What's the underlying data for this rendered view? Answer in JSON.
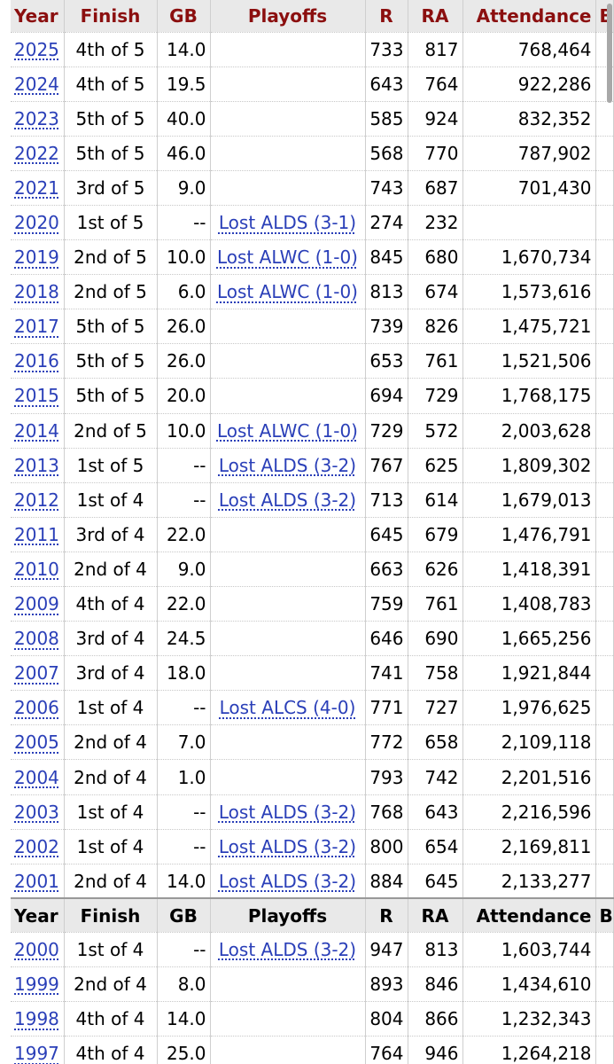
{
  "headers": [
    "Year",
    "Finish",
    "GB",
    "Playoffs",
    "R",
    "RA",
    "Attendance",
    "B"
  ],
  "rows_top": [
    {
      "year": "2025",
      "finish": "4th of 5",
      "gb": "14.0",
      "playoffs": "",
      "r": "733",
      "ra": "817",
      "attendance": "768,464"
    },
    {
      "year": "2024",
      "finish": "4th of 5",
      "gb": "19.5",
      "playoffs": "",
      "r": "643",
      "ra": "764",
      "attendance": "922,286"
    },
    {
      "year": "2023",
      "finish": "5th of 5",
      "gb": "40.0",
      "playoffs": "",
      "r": "585",
      "ra": "924",
      "attendance": "832,352"
    },
    {
      "year": "2022",
      "finish": "5th of 5",
      "gb": "46.0",
      "playoffs": "",
      "r": "568",
      "ra": "770",
      "attendance": "787,902"
    },
    {
      "year": "2021",
      "finish": "3rd of 5",
      "gb": "9.0",
      "playoffs": "",
      "r": "743",
      "ra": "687",
      "attendance": "701,430"
    },
    {
      "year": "2020",
      "finish": "1st of 5",
      "gb": "--",
      "playoffs": "Lost ALDS (3-1)",
      "r": "274",
      "ra": "232",
      "attendance": ""
    },
    {
      "year": "2019",
      "finish": "2nd of 5",
      "gb": "10.0",
      "playoffs": "Lost ALWC (1-0)",
      "r": "845",
      "ra": "680",
      "attendance": "1,670,734"
    },
    {
      "year": "2018",
      "finish": "2nd of 5",
      "gb": "6.0",
      "playoffs": "Lost ALWC (1-0)",
      "r": "813",
      "ra": "674",
      "attendance": "1,573,616"
    },
    {
      "year": "2017",
      "finish": "5th of 5",
      "gb": "26.0",
      "playoffs": "",
      "r": "739",
      "ra": "826",
      "attendance": "1,475,721"
    },
    {
      "year": "2016",
      "finish": "5th of 5",
      "gb": "26.0",
      "playoffs": "",
      "r": "653",
      "ra": "761",
      "attendance": "1,521,506"
    },
    {
      "year": "2015",
      "finish": "5th of 5",
      "gb": "20.0",
      "playoffs": "",
      "r": "694",
      "ra": "729",
      "attendance": "1,768,175"
    },
    {
      "year": "2014",
      "finish": "2nd of 5",
      "gb": "10.0",
      "playoffs": "Lost ALWC (1-0)",
      "r": "729",
      "ra": "572",
      "attendance": "2,003,628"
    },
    {
      "year": "2013",
      "finish": "1st of 5",
      "gb": "--",
      "playoffs": "Lost ALDS (3-2)",
      "r": "767",
      "ra": "625",
      "attendance": "1,809,302"
    },
    {
      "year": "2012",
      "finish": "1st of 4",
      "gb": "--",
      "playoffs": "Lost ALDS (3-2)",
      "r": "713",
      "ra": "614",
      "attendance": "1,679,013"
    },
    {
      "year": "2011",
      "finish": "3rd of 4",
      "gb": "22.0",
      "playoffs": "",
      "r": "645",
      "ra": "679",
      "attendance": "1,476,791"
    },
    {
      "year": "2010",
      "finish": "2nd of 4",
      "gb": "9.0",
      "playoffs": "",
      "r": "663",
      "ra": "626",
      "attendance": "1,418,391"
    },
    {
      "year": "2009",
      "finish": "4th of 4",
      "gb": "22.0",
      "playoffs": "",
      "r": "759",
      "ra": "761",
      "attendance": "1,408,783"
    },
    {
      "year": "2008",
      "finish": "3rd of 4",
      "gb": "24.5",
      "playoffs": "",
      "r": "646",
      "ra": "690",
      "attendance": "1,665,256"
    },
    {
      "year": "2007",
      "finish": "3rd of 4",
      "gb": "18.0",
      "playoffs": "",
      "r": "741",
      "ra": "758",
      "attendance": "1,921,844"
    },
    {
      "year": "2006",
      "finish": "1st of 4",
      "gb": "--",
      "playoffs": "Lost ALCS (4-0)",
      "r": "771",
      "ra": "727",
      "attendance": "1,976,625"
    },
    {
      "year": "2005",
      "finish": "2nd of 4",
      "gb": "7.0",
      "playoffs": "",
      "r": "772",
      "ra": "658",
      "attendance": "2,109,118"
    },
    {
      "year": "2004",
      "finish": "2nd of 4",
      "gb": "1.0",
      "playoffs": "",
      "r": "793",
      "ra": "742",
      "attendance": "2,201,516"
    },
    {
      "year": "2003",
      "finish": "1st of 4",
      "gb": "--",
      "playoffs": "Lost ALDS (3-2)",
      "r": "768",
      "ra": "643",
      "attendance": "2,216,596"
    },
    {
      "year": "2002",
      "finish": "1st of 4",
      "gb": "--",
      "playoffs": "Lost ALDS (3-2)",
      "r": "800",
      "ra": "654",
      "attendance": "2,169,811"
    },
    {
      "year": "2001",
      "finish": "2nd of 4",
      "gb": "14.0",
      "playoffs": "Lost ALDS (3-2)",
      "r": "884",
      "ra": "645",
      "attendance": "2,133,277"
    }
  ],
  "rows_bottom": [
    {
      "year": "2000",
      "finish": "1st of 4",
      "gb": "--",
      "playoffs": "Lost ALDS (3-2)",
      "r": "947",
      "ra": "813",
      "attendance": "1,603,744"
    },
    {
      "year": "1999",
      "finish": "2nd of 4",
      "gb": "8.0",
      "playoffs": "",
      "r": "893",
      "ra": "846",
      "attendance": "1,434,610"
    },
    {
      "year": "1998",
      "finish": "4th of 4",
      "gb": "14.0",
      "playoffs": "",
      "r": "804",
      "ra": "866",
      "attendance": "1,232,343"
    },
    {
      "year": "1997",
      "finish": "4th of 4",
      "gb": "25.0",
      "playoffs": "",
      "r": "764",
      "ra": "946",
      "attendance": "1,264,218"
    }
  ],
  "colors": {
    "header_top_text": "#8b0f0f",
    "link": "#2a3fb8",
    "header_bg": "#e9e9e9"
  }
}
